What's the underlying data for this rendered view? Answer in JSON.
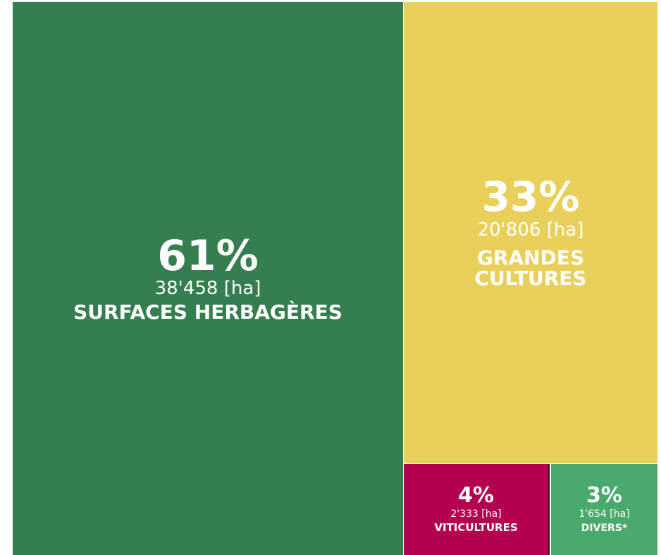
{
  "chart_data": {
    "type": "treemap",
    "title": "",
    "unit": "[ha]",
    "series": [
      {
        "name": "",
        "items": [
          {
            "label": "SURFACES HERBAGÈRES",
            "percent_label": "61%",
            "value": 38458,
            "value_label": "38'458 [ha]",
            "color": "#347e4f"
          },
          {
            "label": "GRANDES CULTURES",
            "percent_label": "33%",
            "value": 20806,
            "value_label": "20'806 [ha]",
            "color": "#e8d05a"
          },
          {
            "label": "VITICULTURES",
            "percent_label": "4%",
            "value": 2333,
            "value_label": "2'333 [ha]",
            "color": "#b3004f"
          },
          {
            "label": "DIVERS*",
            "percent_label": "3%",
            "value": 1654,
            "value_label": "1'654 [ha]",
            "color": "#4aa96c"
          }
        ]
      }
    ]
  }
}
